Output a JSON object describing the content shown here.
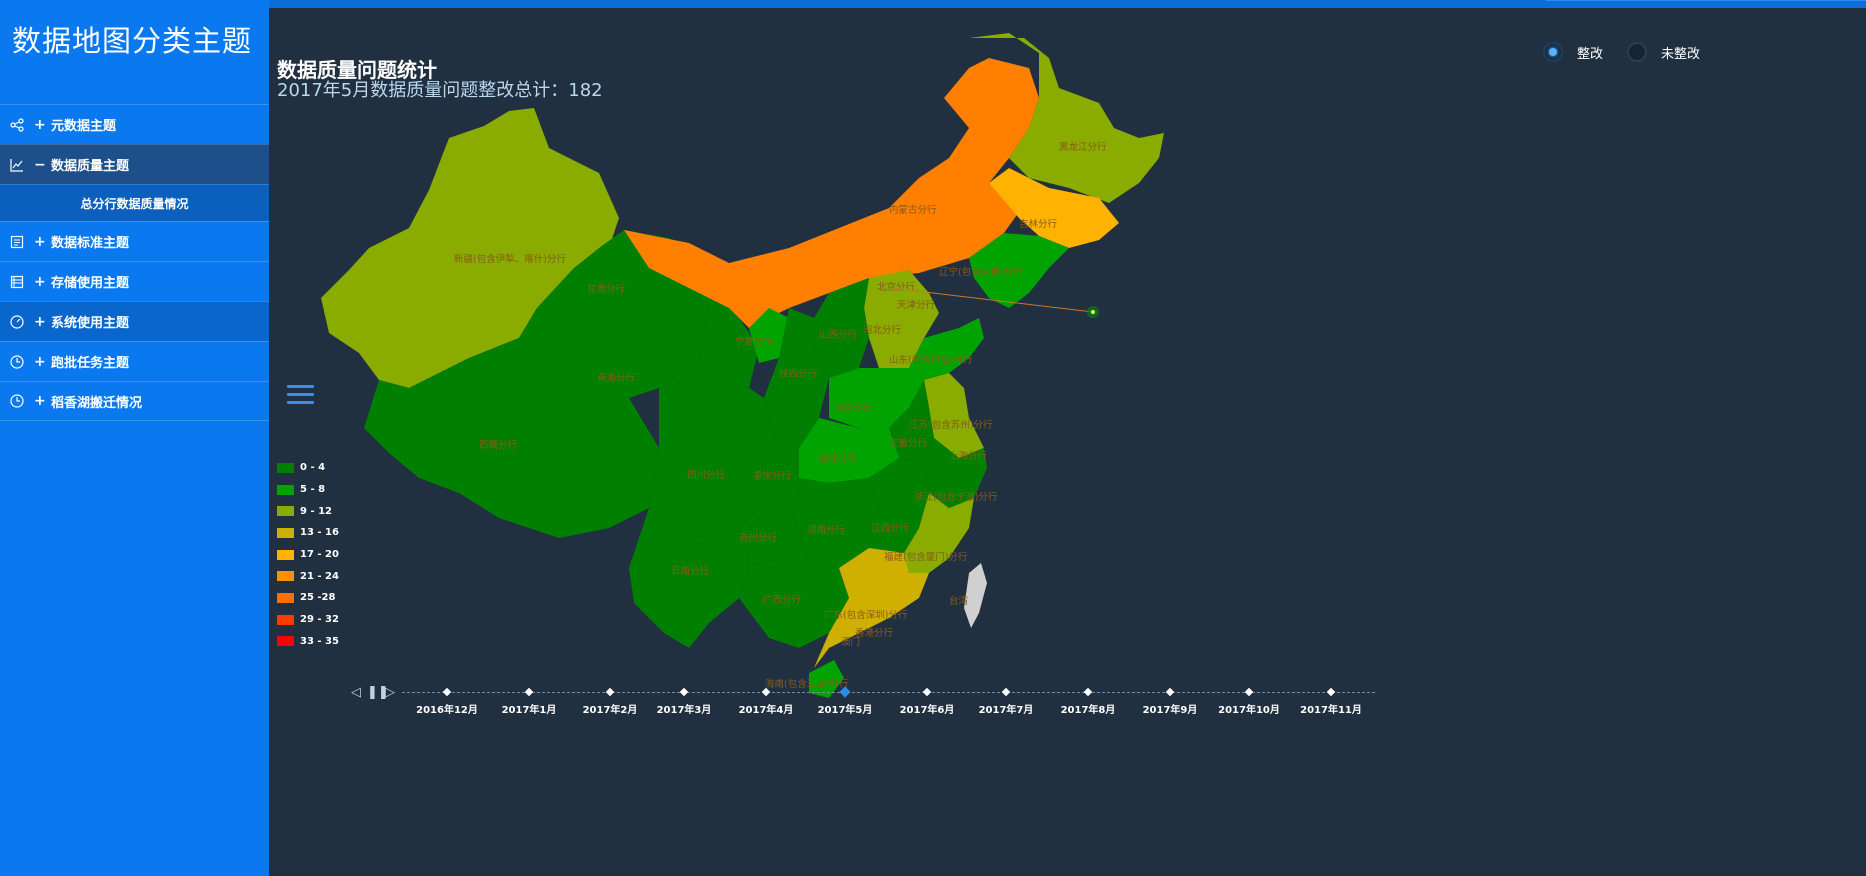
{
  "app": {
    "title": "数据地图分类主题"
  },
  "sidebar": {
    "items": [
      {
        "label": "元数据主题",
        "sign": "+",
        "icon": "share-icon"
      },
      {
        "label": "数据质量主题",
        "sign": "−",
        "icon": "line-chart-icon"
      },
      {
        "label": "数据标准主题",
        "sign": "+",
        "icon": "document-icon"
      },
      {
        "label": "存储使用主题",
        "sign": "+",
        "icon": "list-icon"
      },
      {
        "label": "系统使用主题",
        "sign": "+",
        "icon": "gauge-icon"
      },
      {
        "label": "跑批任务主题",
        "sign": "+",
        "icon": "clock-icon"
      },
      {
        "label": "稻香湖搬迁情况",
        "sign": "+",
        "icon": "clock-icon"
      }
    ],
    "sub_item": "总分行数据质量情况"
  },
  "map": {
    "title": "数据质量问题统计",
    "subtitle": "2017年5月数据质量问题整改总计：182",
    "toggle": {
      "on_label": "整改",
      "off_label": "未整改"
    },
    "legend": [
      {
        "label": "0 - 4",
        "color": "#007f00"
      },
      {
        "label": "5 - 8",
        "color": "#00a300"
      },
      {
        "label": "9 - 12",
        "color": "#8aab00"
      },
      {
        "label": "13 - 16",
        "color": "#cfb000"
      },
      {
        "label": "17 - 20",
        "color": "#ffb300"
      },
      {
        "label": "21 - 24",
        "color": "#ff9100"
      },
      {
        "label": "25 -28",
        "color": "#ff6f00"
      },
      {
        "label": "29 - 32",
        "color": "#ff3a00"
      },
      {
        "label": "33 - 35",
        "color": "#ff0000"
      }
    ],
    "provinces": [
      "新疆(包含伊犁、喀什)分行",
      "西藏分行",
      "青海分行",
      "甘肃分行",
      "内蒙古分行",
      "黑龙江分行",
      "吉林分行",
      "辽宁(包含大连)分行",
      "北京分行",
      "天津分行",
      "河北分行",
      "山西分行",
      "宁夏分行",
      "陕西分行",
      "山东(包含青岛)分行",
      "河南分行",
      "江苏(包含苏州)分行",
      "安徽分行",
      "上海分行",
      "湖北分行",
      "四川分行",
      "重庆分行",
      "浙江(包含宁波)分行",
      "湖南分行",
      "江西分行",
      "贵州分行",
      "福建(包含厦门)分行",
      "云南分行",
      "广西分行",
      "广东(包含深圳)分行",
      "香港分行",
      "澳门",
      "海南(包含三亚)分行",
      "台湾"
    ]
  },
  "timeline": {
    "labels": [
      "2016年12月",
      "2017年1月",
      "2017年2月",
      "2017年3月",
      "2017年4月",
      "2017年5月",
      "2017年6月",
      "2017年7月",
      "2017年8月",
      "2017年9月",
      "2017年10月",
      "2017年11月"
    ],
    "active": "2017年5月"
  }
}
